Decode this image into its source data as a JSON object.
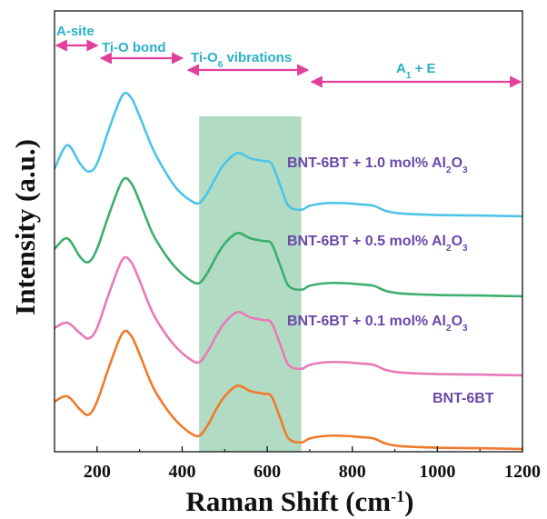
{
  "chart_data": {
    "type": "line",
    "xlabel": "Raman Shift (cm",
    "xlabel_sup": "-1",
    "xlabel_close": ")",
    "ylabel": "Intensity (a.u.)",
    "xlim": [
      100,
      1200
    ],
    "x_ticks": [
      200,
      400,
      600,
      800,
      1000,
      1200
    ],
    "y_ticks_shown": false,
    "highlight_band": {
      "x_range": [
        440,
        680
      ],
      "color": "#a8d8bc"
    },
    "regions": [
      {
        "label": "A-site",
        "x_range": [
          100,
          205
        ],
        "color": "#e0409a",
        "text_color": "#2ab0c8"
      },
      {
        "label": "Ti-O bond",
        "x_range": [
          205,
          405
        ],
        "color": "#e0409a",
        "text_color": "#2ab0c8"
      },
      {
        "label_main": "Ti-O",
        "label_sub": "6",
        "label_tail": " vibrations",
        "x_range": [
          410,
          700
        ],
        "color": "#e0409a",
        "text_color": "#2ab0c8"
      },
      {
        "label_main": "A",
        "label_sub": "1",
        "label_tail": " + E",
        "x_range": [
          700,
          1200
        ],
        "color": "#e0409a",
        "text_color": "#2ab0c8"
      }
    ],
    "x": [
      100,
      130,
      160,
      180,
      200,
      230,
      260,
      280,
      300,
      330,
      360,
      390,
      420,
      440,
      460,
      480,
      500,
      530,
      560,
      590,
      610,
      630,
      650,
      680,
      700,
      740,
      780,
      820,
      850,
      880,
      920,
      1000,
      1100,
      1200
    ],
    "series": [
      {
        "name": "BNT-6BT",
        "color": "#f07a2a",
        "values": [
          0.18,
          0.2,
          0.15,
          0.13,
          0.18,
          0.32,
          0.44,
          0.43,
          0.36,
          0.24,
          0.16,
          0.1,
          0.06,
          0.05,
          0.09,
          0.15,
          0.2,
          0.24,
          0.22,
          0.21,
          0.2,
          0.12,
          0.04,
          0.025,
          0.04,
          0.05,
          0.05,
          0.045,
          0.04,
          0.02,
          0.01,
          0.005,
          0.003,
          0.0
        ]
      },
      {
        "name": "BNT-6BT + 0.1 mol% Al2O3",
        "color": "#e77ab8",
        "values": [
          0.18,
          0.2,
          0.16,
          0.14,
          0.18,
          0.32,
          0.44,
          0.43,
          0.36,
          0.24,
          0.16,
          0.1,
          0.06,
          0.05,
          0.09,
          0.15,
          0.2,
          0.24,
          0.22,
          0.21,
          0.2,
          0.12,
          0.04,
          0.025,
          0.04,
          0.05,
          0.05,
          0.045,
          0.04,
          0.02,
          0.01,
          0.005,
          0.003,
          0.0
        ]
      },
      {
        "name": "BNT-6BT + 0.5 mol% Al2O3",
        "color": "#3dae6e",
        "values": [
          0.18,
          0.22,
          0.15,
          0.13,
          0.18,
          0.32,
          0.44,
          0.43,
          0.36,
          0.24,
          0.16,
          0.1,
          0.06,
          0.05,
          0.09,
          0.15,
          0.2,
          0.24,
          0.22,
          0.21,
          0.2,
          0.12,
          0.04,
          0.025,
          0.04,
          0.05,
          0.05,
          0.045,
          0.04,
          0.02,
          0.01,
          0.005,
          0.003,
          0.0
        ]
      },
      {
        "name": "BNT-6BT + 1.0 mol% Al2O3",
        "color": "#4ec4e6",
        "values": [
          0.18,
          0.27,
          0.2,
          0.17,
          0.2,
          0.34,
          0.46,
          0.45,
          0.38,
          0.26,
          0.17,
          0.1,
          0.06,
          0.05,
          0.09,
          0.15,
          0.2,
          0.24,
          0.22,
          0.21,
          0.2,
          0.12,
          0.04,
          0.025,
          0.04,
          0.05,
          0.05,
          0.045,
          0.04,
          0.02,
          0.01,
          0.005,
          0.003,
          0.0
        ]
      }
    ],
    "series_labels": [
      {
        "main": "BNT-6BT",
        "sub": "",
        "tail": ""
      },
      {
        "main": "BNT-6BT + 0.1 mol% Al",
        "sub": "2",
        "tail": "O",
        "sub2": "3"
      },
      {
        "main": "BNT-6BT + 0.5 mol% Al",
        "sub": "2",
        "tail": "O",
        "sub2": "3"
      },
      {
        "main": "BNT-6BT + 1.0 mol% Al",
        "sub": "2",
        "tail": "O",
        "sub2": "3"
      }
    ],
    "label_color": "#6a48a8",
    "grid": false
  }
}
